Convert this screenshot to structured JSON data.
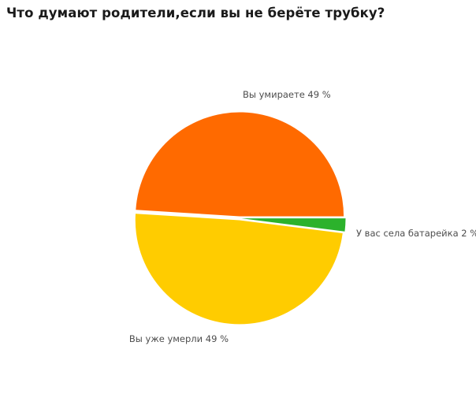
{
  "title": {
    "text": "Что думают родители,если вы не берёте трубку?",
    "color": "#1a1a1a"
  },
  "chart_data": {
    "type": "pie",
    "title": "Что думают родители,если вы не берёте трубку?",
    "categories": [
      "Вы умираете",
      "Вы уже умерли",
      "У вас села батарейка"
    ],
    "values": [
      49,
      49,
      2
    ],
    "unit": "%",
    "slices": [
      {
        "label": "Вы умираете",
        "value_pct": 49,
        "display_label": "Вы умираете 49 %",
        "color": "#FF6A00"
      },
      {
        "label": "Вы уже умерли",
        "value_pct": 49,
        "display_label": "Вы уже умерли 49 %",
        "color": "#FFCC00"
      },
      {
        "label": "У вас села батарейка",
        "value_pct": 2,
        "display_label": "У вас села батарейка 2 %",
        "color": "#2CB22C"
      }
    ],
    "start_angle_deg": 0,
    "direction": "counterclockwise",
    "exploded": true,
    "legend_position": "none",
    "labels_position": "outside",
    "label_color": "#4d4d4d",
    "background": "#ffffff"
  }
}
